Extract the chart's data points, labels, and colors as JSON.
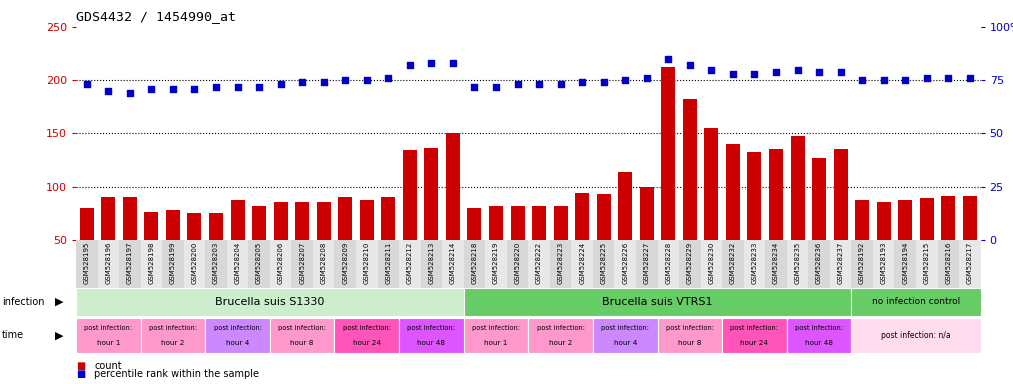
{
  "title": "GDS4432 / 1454990_at",
  "ylim_left": [
    50,
    250
  ],
  "yticks_left": [
    50,
    100,
    150,
    200,
    250
  ],
  "yticks_right": [
    0,
    25,
    50,
    75,
    100
  ],
  "yticklabels_right": [
    "0",
    "25",
    "50",
    "75",
    "100%"
  ],
  "bar_color": "#cc0000",
  "dot_color": "#0000cc",
  "sample_ids": [
    "GSM528195",
    "GSM528196",
    "GSM528197",
    "GSM528198",
    "GSM528199",
    "GSM528200",
    "GSM528203",
    "GSM528204",
    "GSM528205",
    "GSM528206",
    "GSM528207",
    "GSM528208",
    "GSM528209",
    "GSM528210",
    "GSM528211",
    "GSM528212",
    "GSM528213",
    "GSM528214",
    "GSM528218",
    "GSM528219",
    "GSM528220",
    "GSM528222",
    "GSM528223",
    "GSM528224",
    "GSM528225",
    "GSM528226",
    "GSM528227",
    "GSM528228",
    "GSM528229",
    "GSM528230",
    "GSM528232",
    "GSM528233",
    "GSM528234",
    "GSM528235",
    "GSM528236",
    "GSM528237",
    "GSM528192",
    "GSM528193",
    "GSM528194",
    "GSM528215",
    "GSM528216",
    "GSM528217"
  ],
  "bar_values": [
    80,
    90,
    90,
    76,
    78,
    75,
    75,
    88,
    82,
    86,
    86,
    86,
    90,
    88,
    90,
    134,
    136,
    150,
    80,
    82,
    82,
    82,
    82,
    94,
    93,
    114,
    100,
    212,
    182,
    155,
    140,
    133,
    135,
    148,
    127,
    135,
    88,
    86,
    88,
    89,
    91,
    91
  ],
  "dot_values_pct": [
    73,
    70,
    69,
    71,
    71,
    71,
    72,
    72,
    72,
    73,
    74,
    74,
    75,
    75,
    76,
    82,
    83,
    83,
    72,
    72,
    73,
    73,
    73,
    74,
    74,
    75,
    76,
    85,
    82,
    80,
    78,
    78,
    79,
    80,
    79,
    79,
    75,
    75,
    75,
    76,
    76,
    76
  ],
  "infection_s1330_color": "#cceecc",
  "infection_vtrs1_color": "#66cc66",
  "infection_none_color": "#66cc66",
  "time_colors": [
    "#ff99cc",
    "#ff99cc",
    "#cc88ff",
    "#ff99cc",
    "#ff55bb",
    "#dd55ff",
    "#ff99cc",
    "#ff99cc",
    "#cc88ff",
    "#ff99cc",
    "#ff55bb",
    "#dd55ff",
    "#ffddee"
  ],
  "time_groups": [
    {
      "label": "post infection:\nhour 1",
      "start": 0,
      "end": 3
    },
    {
      "label": "post infection:\nhour 2",
      "start": 3,
      "end": 6
    },
    {
      "label": "post infection:\nhour 4",
      "start": 6,
      "end": 9
    },
    {
      "label": "post infection:\nhour 8",
      "start": 9,
      "end": 12
    },
    {
      "label": "post infection:\nhour 24",
      "start": 12,
      "end": 15
    },
    {
      "label": "post infection:\nhour 48",
      "start": 15,
      "end": 18
    },
    {
      "label": "post infection:\nhour 1",
      "start": 18,
      "end": 21
    },
    {
      "label": "post infection:\nhour 2",
      "start": 21,
      "end": 24
    },
    {
      "label": "post infection:\nhour 4",
      "start": 24,
      "end": 27
    },
    {
      "label": "post infection:\nhour 8",
      "start": 27,
      "end": 30
    },
    {
      "label": "post infection:\nhour 24",
      "start": 30,
      "end": 33
    },
    {
      "label": "post infection:\nhour 48",
      "start": 33,
      "end": 36
    },
    {
      "label": "post infection: n/a",
      "start": 36,
      "end": 42
    }
  ]
}
